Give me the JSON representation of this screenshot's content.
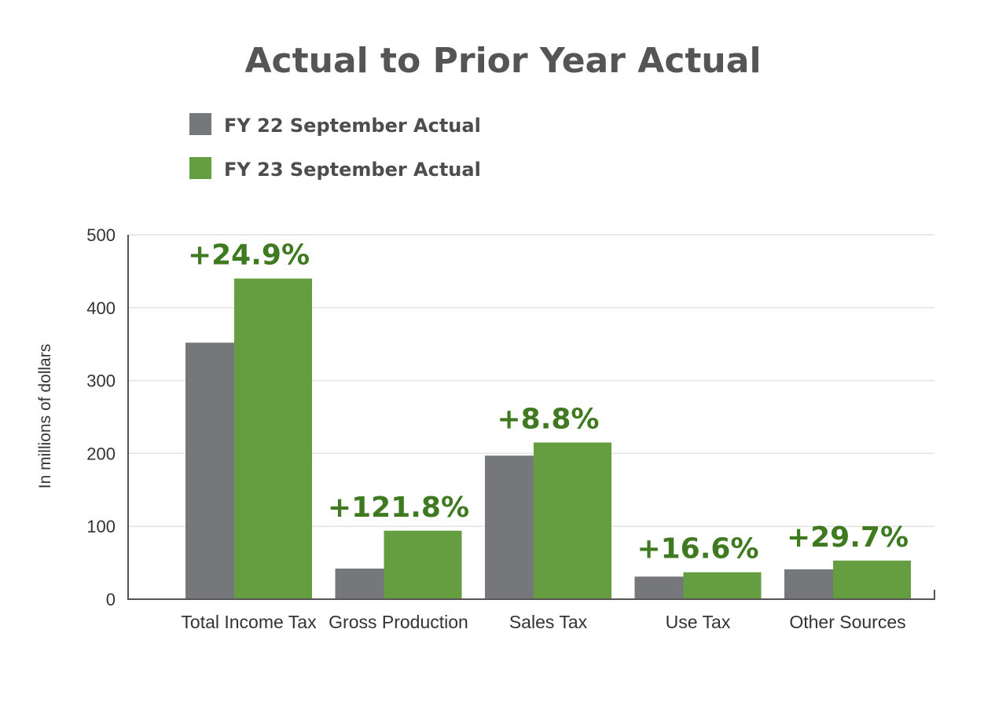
{
  "chart_data": {
    "type": "bar",
    "title": "Actual to Prior Year Actual",
    "ylabel": "In millions of dollars",
    "xlabel": "",
    "ylim": [
      0,
      500
    ],
    "yticks": [
      "0",
      "100",
      "200",
      "300",
      "400",
      "500"
    ],
    "grid": true,
    "legend_position": "top-left",
    "categories": [
      "Total Income Tax",
      "Gross Production",
      "Sales Tax",
      "Use Tax",
      "Other Sources"
    ],
    "series": [
      {
        "name": "FY 22 September Actual",
        "color": "#76777b",
        "values": [
          352,
          42,
          197,
          31,
          41
        ]
      },
      {
        "name": "FY 23 September Actual",
        "color": "#659e41",
        "values": [
          440,
          94,
          215,
          37,
          53
        ]
      }
    ],
    "annotations": [
      "+24.9%",
      "+121.8%",
      "+8.8%",
      "+16.6%",
      "+29.7%"
    ],
    "annotation_color": "#3f7a21"
  }
}
